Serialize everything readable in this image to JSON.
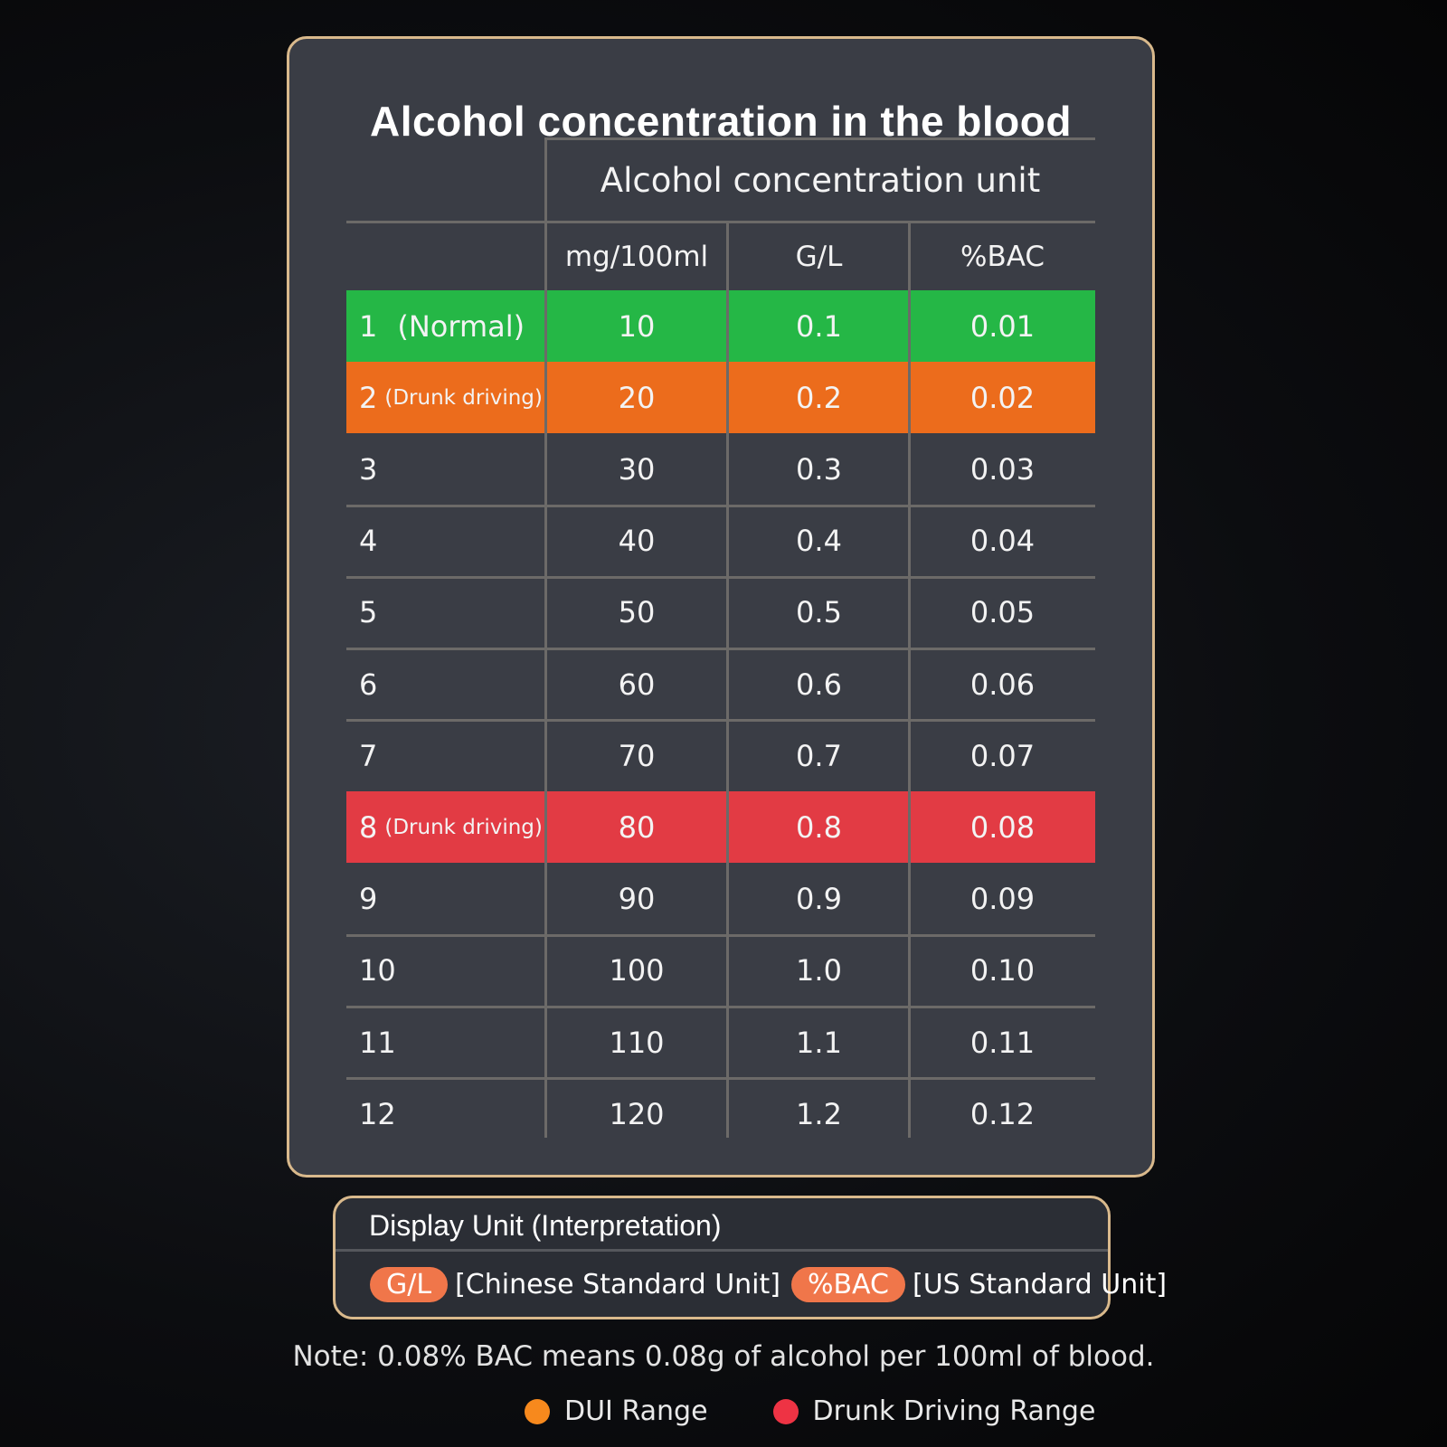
{
  "title": "Alcohol concentration in the blood",
  "unit_header": "Alcohol concentration unit",
  "columns": [
    "mg/100ml",
    "G/L",
    "%BAC"
  ],
  "rows": [
    {
      "level": "1",
      "note": "(Normal)",
      "mg": "10",
      "gl": "0.1",
      "bac": "0.01",
      "color": "#25b746"
    },
    {
      "level": "2",
      "note": "(Drunk driving)",
      "mg": "20",
      "gl": "0.2",
      "bac": "0.02",
      "color": "#ec6c1c"
    },
    {
      "level": "3",
      "note": "",
      "mg": "30",
      "gl": "0.3",
      "bac": "0.03",
      "color": ""
    },
    {
      "level": "4",
      "note": "",
      "mg": "40",
      "gl": "0.4",
      "bac": "0.04",
      "color": ""
    },
    {
      "level": "5",
      "note": "",
      "mg": "50",
      "gl": "0.5",
      "bac": "0.05",
      "color": ""
    },
    {
      "level": "6",
      "note": "",
      "mg": "60",
      "gl": "0.6",
      "bac": "0.06",
      "color": ""
    },
    {
      "level": "7",
      "note": "",
      "mg": "70",
      "gl": "0.7",
      "bac": "0.07",
      "color": ""
    },
    {
      "level": "8",
      "note": "(Drunk driving)",
      "mg": "80",
      "gl": "0.8",
      "bac": "0.08",
      "color": "#e23b44"
    },
    {
      "level": "9",
      "note": "",
      "mg": "90",
      "gl": "0.9",
      "bac": "0.09",
      "color": ""
    },
    {
      "level": "10",
      "note": "",
      "mg": "100",
      "gl": "1.0",
      "bac": "0.10",
      "color": ""
    },
    {
      "level": "11",
      "note": "",
      "mg": "110",
      "gl": "1.1",
      "bac": "0.11",
      "color": ""
    },
    {
      "level": "12",
      "note": "",
      "mg": "120",
      "gl": "1.2",
      "bac": "0.12",
      "color": ""
    }
  ],
  "display_unit": {
    "title": "Display Unit (Interpretation)",
    "gl_badge": "G/L",
    "gl_desc": "[Chinese Standard Unit]",
    "bac_badge": "%BAC",
    "bac_desc": "[US Standard Unit]"
  },
  "note": "Note: 0.08% BAC means 0.08g of alcohol per 100ml of blood.",
  "legend": [
    {
      "label": "DUI Range",
      "color": "#f7891d"
    },
    {
      "label": "Drunk Driving Range",
      "color": "#ee3344"
    }
  ]
}
